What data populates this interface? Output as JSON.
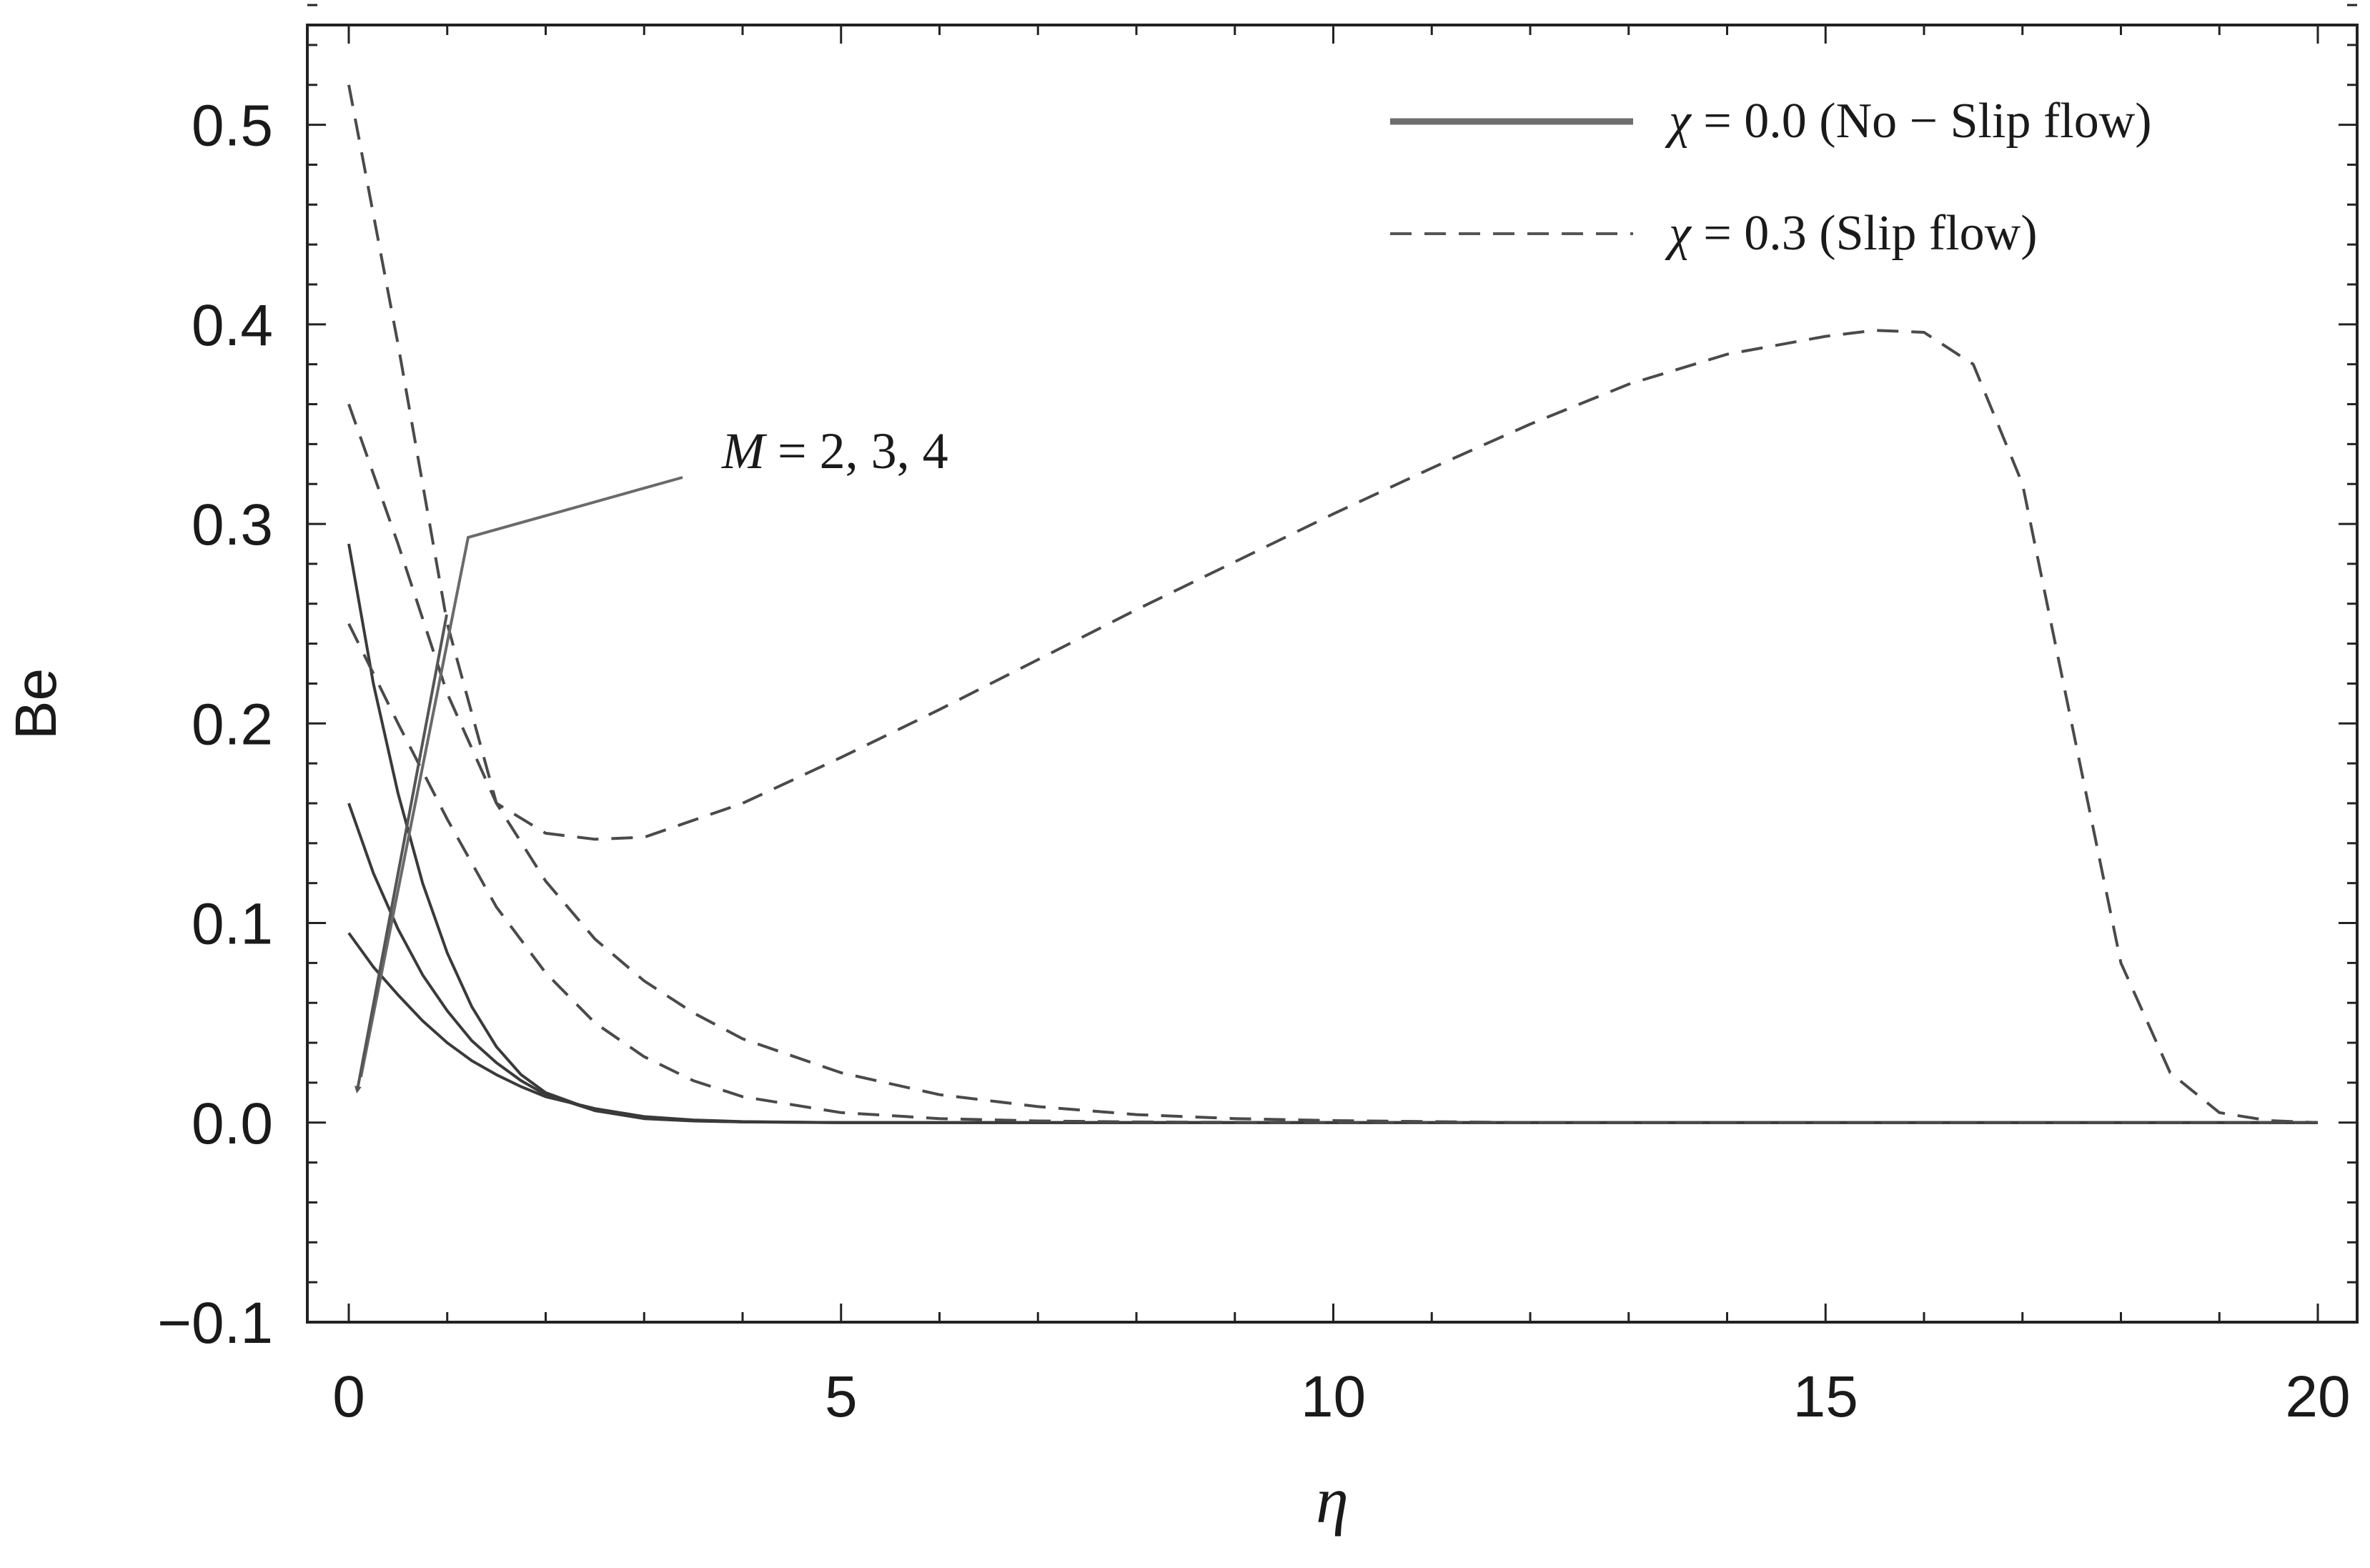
{
  "chart_data": {
    "type": "line",
    "title": "",
    "xlabel": "η",
    "ylabel": "Be",
    "xlim": [
      0,
      20
    ],
    "ylim": [
      -0.1,
      0.55
    ],
    "xticks": [
      0,
      5,
      10,
      15,
      20
    ],
    "xtick_labels": [
      "0",
      "5",
      "10",
      "15",
      "20"
    ],
    "yticks": [
      -0.1,
      0.0,
      0.1,
      0.2,
      0.3,
      0.4,
      0.5
    ],
    "ytick_labels": [
      "−0.1",
      "0.0",
      "0.1",
      "0.2",
      "0.3",
      "0.4",
      "0.5"
    ],
    "grid": false,
    "legend_position": "top-right",
    "legend": [
      {
        "symbol": "χ",
        "label": " = 0.0 (No − Slip flow)",
        "style": "solid"
      },
      {
        "symbol": "χ",
        "label": " = 0.3 (Slip flow)",
        "style": "dashed"
      }
    ],
    "annotation": {
      "symbol": "M",
      "text": " = 2, 3, 4",
      "direction": "decreasing"
    },
    "series": [
      {
        "name": "χ = 0.0, M = 2",
        "style": "solid",
        "x": [
          0,
          0.25,
          0.5,
          0.75,
          1.0,
          1.25,
          1.5,
          1.75,
          2.0,
          2.5,
          3.0,
          3.5,
          4,
          5,
          6,
          8,
          10,
          12,
          15,
          20
        ],
        "y": [
          0.29,
          0.22,
          0.165,
          0.12,
          0.085,
          0.058,
          0.038,
          0.024,
          0.015,
          0.006,
          0.002,
          0.0008,
          0.0003,
          0,
          0,
          0,
          0,
          0,
          0,
          0
        ]
      },
      {
        "name": "χ = 0.0, M = 3",
        "style": "solid",
        "x": [
          0,
          0.25,
          0.5,
          0.75,
          1.0,
          1.25,
          1.5,
          1.75,
          2.0,
          2.5,
          3.0,
          3.5,
          4,
          5,
          6,
          8,
          10,
          12,
          15,
          20
        ],
        "y": [
          0.16,
          0.125,
          0.097,
          0.074,
          0.056,
          0.041,
          0.03,
          0.021,
          0.014,
          0.006,
          0.0025,
          0.001,
          0.0004,
          0,
          0,
          0,
          0,
          0,
          0,
          0
        ]
      },
      {
        "name": "χ = 0.0, M = 4",
        "style": "solid",
        "x": [
          0,
          0.25,
          0.5,
          0.75,
          1.0,
          1.25,
          1.5,
          1.75,
          2.0,
          2.5,
          3.0,
          3.5,
          4,
          5,
          6,
          8,
          10,
          12,
          15,
          20
        ],
        "y": [
          0.095,
          0.078,
          0.064,
          0.051,
          0.04,
          0.031,
          0.024,
          0.018,
          0.013,
          0.007,
          0.003,
          0.0013,
          0.0005,
          0,
          0,
          0,
          0,
          0,
          0,
          0
        ]
      },
      {
        "name": "χ = 0.3, M = 2",
        "style": "dashed",
        "x": [
          0,
          0.5,
          1.0,
          1.5,
          2.0,
          2.5,
          3.0,
          4,
          5,
          6,
          7,
          8,
          9,
          10,
          11,
          12,
          13,
          14,
          15,
          15.5,
          16,
          16.5,
          17,
          17.5,
          18,
          18.5,
          19,
          19.5,
          20
        ],
        "y": [
          0.52,
          0.39,
          0.25,
          0.16,
          0.145,
          0.142,
          0.143,
          0.16,
          0.183,
          0.207,
          0.232,
          0.257,
          0.281,
          0.305,
          0.328,
          0.35,
          0.37,
          0.385,
          0.394,
          0.397,
          0.396,
          0.38,
          0.32,
          0.2,
          0.08,
          0.025,
          0.005,
          0.001,
          0
        ]
      },
      {
        "name": "χ = 0.3, M = 3",
        "style": "dashed",
        "x": [
          0,
          0.5,
          1.0,
          1.5,
          2.0,
          2.5,
          3.0,
          3.5,
          4,
          5,
          6,
          7,
          8,
          9,
          10,
          12,
          15,
          20
        ],
        "y": [
          0.36,
          0.29,
          0.215,
          0.16,
          0.121,
          0.092,
          0.071,
          0.055,
          0.042,
          0.025,
          0.014,
          0.008,
          0.004,
          0.002,
          0.001,
          0,
          0,
          0
        ]
      },
      {
        "name": "χ = 0.3, M = 4",
        "style": "dashed",
        "x": [
          0,
          0.5,
          1.0,
          1.5,
          2.0,
          2.5,
          3.0,
          3.5,
          4,
          5,
          6,
          7,
          8,
          10,
          12,
          15,
          20
        ],
        "y": [
          0.25,
          0.2,
          0.152,
          0.108,
          0.075,
          0.05,
          0.033,
          0.021,
          0.013,
          0.005,
          0.002,
          0.0008,
          0.0003,
          0,
          0,
          0,
          0
        ]
      }
    ]
  }
}
